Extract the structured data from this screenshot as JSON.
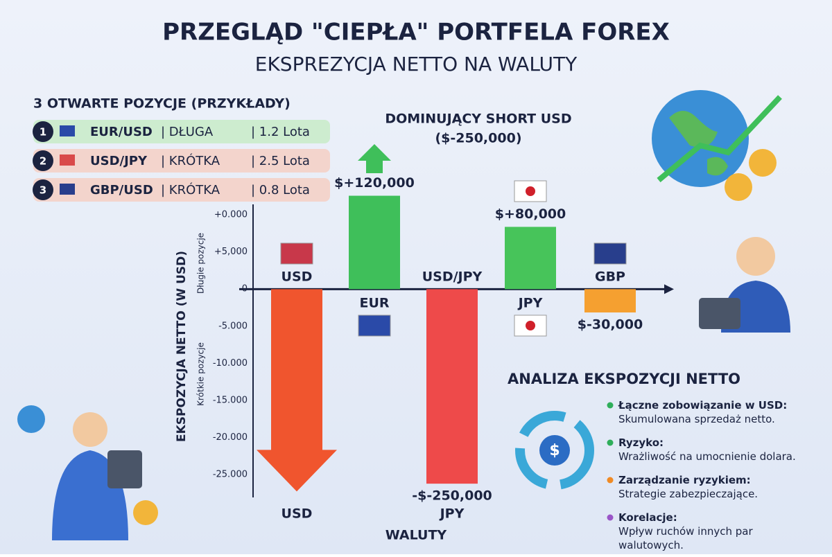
{
  "header": {
    "title": "PRZEGLĄD \"CIEPŁA\" PORTFELA FOREX",
    "subtitle": "EKSPREZYCJA NETTO NA WALUTY"
  },
  "positions": {
    "title": "3 OTWARTE POZYCJE (PRZYKŁADY)",
    "items": [
      {
        "number": "1",
        "pair": "EUR/USD",
        "side": "| DŁUGA",
        "size": "| 1.2 Lota"
      },
      {
        "number": "2",
        "pair": "USD/JPY",
        "side": "| KRÓTKA",
        "size": "| 2.5 Lota"
      },
      {
        "number": "3",
        "pair": "GBP/USD",
        "side": "| KRÓTKA",
        "size": "| 0.8 Lota"
      }
    ]
  },
  "chart_data": {
    "type": "bar",
    "annotation": [
      "DOMINUJĄCY SHORT USD",
      "($-250,000)"
    ],
    "y_label": "EKSPOZYCJA NETTO (W USD)",
    "long_label": "Długie pozycje",
    "short_label": "Krótkie pozycje",
    "x_label": "WALUTY",
    "categories": [
      "USD",
      "EUR",
      "USD/JPY",
      "JPY",
      "GBP"
    ],
    "bottom_labels": [
      "USD",
      "JPY"
    ],
    "values": [
      -260000,
      120000,
      -250000,
      80000,
      -30000
    ],
    "value_labels": [
      null,
      "$+120,000",
      "-$-250,000",
      "$+80,000",
      "$-30,000"
    ],
    "colors": [
      "#f0552e",
      "#3fbf5a",
      "#ee4a4a",
      "#47c45a",
      "#f5a030"
    ],
    "ylim": [
      -265000,
      100000
    ],
    "y_axis_labels": [
      "+0.000",
      "+5,000",
      "0",
      "-5.000",
      "-10.000",
      "-15.000",
      "-20.000",
      "-25.000"
    ]
  },
  "analysis": {
    "title": "ANALIZA EKSPOZYCJI NETTO",
    "items": [
      {
        "head": "Łączne zobowiązanie w USD:",
        "text": "Skumulowana sprzedaż netto.",
        "color": "#2fae5a"
      },
      {
        "head": "Ryzyko:",
        "text": "Wrażliwość na umocnienie dolara.",
        "color": "#2fae5a"
      },
      {
        "head": "Zarządzanie ryzykiem:",
        "text": "Strategie zabezpieczające.",
        "color": "#f08a24"
      },
      {
        "head": "Korelacje:",
        "text": "Wpływ ruchów innych par walutowych.",
        "color": "#9a55c8"
      }
    ]
  }
}
